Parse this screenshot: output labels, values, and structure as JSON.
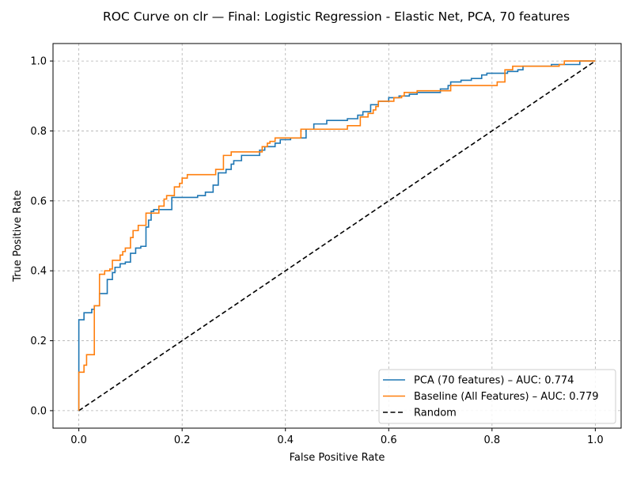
{
  "chart_data": {
    "type": "line",
    "title": "ROC Curve on clr — Final: Logistic Regression - Elastic Net, PCA, 70 features",
    "xlabel": "False Positive Rate",
    "ylabel": "True Positive Rate",
    "xlim": [
      -0.05,
      1.05
    ],
    "ylim": [
      -0.05,
      1.05
    ],
    "xticks": [
      "0.0",
      "0.2",
      "0.4",
      "0.6",
      "0.8",
      "1.0"
    ],
    "yticks": [
      "0.0",
      "0.2",
      "0.4",
      "0.6",
      "0.8",
      "1.0"
    ],
    "grid": true,
    "legend_position": "bottom-right",
    "series": [
      {
        "name": "PCA (70 features) – AUC: 0.774",
        "color": "#1f77b4",
        "style": "step",
        "points": [
          [
            0.0,
            0.0
          ],
          [
            0.0,
            0.26
          ],
          [
            0.01,
            0.26
          ],
          [
            0.01,
            0.28
          ],
          [
            0.025,
            0.28
          ],
          [
            0.025,
            0.29
          ],
          [
            0.03,
            0.29
          ],
          [
            0.03,
            0.3
          ],
          [
            0.04,
            0.3
          ],
          [
            0.04,
            0.335
          ],
          [
            0.055,
            0.335
          ],
          [
            0.055,
            0.375
          ],
          [
            0.065,
            0.375
          ],
          [
            0.065,
            0.395
          ],
          [
            0.07,
            0.395
          ],
          [
            0.07,
            0.41
          ],
          [
            0.08,
            0.41
          ],
          [
            0.08,
            0.42
          ],
          [
            0.09,
            0.42
          ],
          [
            0.09,
            0.425
          ],
          [
            0.1,
            0.425
          ],
          [
            0.1,
            0.45
          ],
          [
            0.11,
            0.45
          ],
          [
            0.11,
            0.465
          ],
          [
            0.12,
            0.465
          ],
          [
            0.12,
            0.47
          ],
          [
            0.13,
            0.47
          ],
          [
            0.13,
            0.525
          ],
          [
            0.135,
            0.525
          ],
          [
            0.135,
            0.545
          ],
          [
            0.14,
            0.545
          ],
          [
            0.14,
            0.57
          ],
          [
            0.145,
            0.57
          ],
          [
            0.145,
            0.575
          ],
          [
            0.18,
            0.575
          ],
          [
            0.18,
            0.61
          ],
          [
            0.23,
            0.61
          ],
          [
            0.23,
            0.615
          ],
          [
            0.245,
            0.615
          ],
          [
            0.245,
            0.625
          ],
          [
            0.26,
            0.625
          ],
          [
            0.26,
            0.645
          ],
          [
            0.27,
            0.645
          ],
          [
            0.27,
            0.68
          ],
          [
            0.285,
            0.68
          ],
          [
            0.285,
            0.69
          ],
          [
            0.295,
            0.69
          ],
          [
            0.295,
            0.705
          ],
          [
            0.3,
            0.705
          ],
          [
            0.3,
            0.715
          ],
          [
            0.315,
            0.715
          ],
          [
            0.315,
            0.73
          ],
          [
            0.35,
            0.73
          ],
          [
            0.35,
            0.745
          ],
          [
            0.36,
            0.745
          ],
          [
            0.36,
            0.755
          ],
          [
            0.38,
            0.755
          ],
          [
            0.38,
            0.765
          ],
          [
            0.39,
            0.765
          ],
          [
            0.39,
            0.775
          ],
          [
            0.41,
            0.775
          ],
          [
            0.41,
            0.78
          ],
          [
            0.44,
            0.78
          ],
          [
            0.44,
            0.805
          ],
          [
            0.455,
            0.805
          ],
          [
            0.455,
            0.82
          ],
          [
            0.48,
            0.82
          ],
          [
            0.48,
            0.83
          ],
          [
            0.52,
            0.83
          ],
          [
            0.52,
            0.835
          ],
          [
            0.54,
            0.835
          ],
          [
            0.54,
            0.845
          ],
          [
            0.55,
            0.845
          ],
          [
            0.55,
            0.855
          ],
          [
            0.565,
            0.855
          ],
          [
            0.565,
            0.875
          ],
          [
            0.58,
            0.875
          ],
          [
            0.58,
            0.885
          ],
          [
            0.6,
            0.885
          ],
          [
            0.6,
            0.895
          ],
          [
            0.62,
            0.895
          ],
          [
            0.62,
            0.9
          ],
          [
            0.64,
            0.9
          ],
          [
            0.64,
            0.905
          ],
          [
            0.655,
            0.905
          ],
          [
            0.655,
            0.91
          ],
          [
            0.7,
            0.91
          ],
          [
            0.7,
            0.92
          ],
          [
            0.715,
            0.92
          ],
          [
            0.715,
            0.93
          ],
          [
            0.72,
            0.93
          ],
          [
            0.72,
            0.94
          ],
          [
            0.74,
            0.94
          ],
          [
            0.74,
            0.945
          ],
          [
            0.76,
            0.945
          ],
          [
            0.76,
            0.95
          ],
          [
            0.78,
            0.95
          ],
          [
            0.78,
            0.96
          ],
          [
            0.79,
            0.96
          ],
          [
            0.79,
            0.965
          ],
          [
            0.83,
            0.965
          ],
          [
            0.83,
            0.97
          ],
          [
            0.85,
            0.97
          ],
          [
            0.85,
            0.975
          ],
          [
            0.86,
            0.975
          ],
          [
            0.86,
            0.985
          ],
          [
            0.915,
            0.985
          ],
          [
            0.915,
            0.99
          ],
          [
            0.97,
            0.99
          ],
          [
            0.97,
            1.0
          ],
          [
            1.0,
            1.0
          ]
        ]
      },
      {
        "name": "Baseline (All Features) – AUC: 0.779",
        "color": "#ff7f0e",
        "style": "step",
        "points": [
          [
            0.0,
            0.0
          ],
          [
            0.0,
            0.11
          ],
          [
            0.01,
            0.11
          ],
          [
            0.01,
            0.13
          ],
          [
            0.015,
            0.13
          ],
          [
            0.015,
            0.16
          ],
          [
            0.03,
            0.16
          ],
          [
            0.03,
            0.3
          ],
          [
            0.04,
            0.3
          ],
          [
            0.04,
            0.39
          ],
          [
            0.05,
            0.39
          ],
          [
            0.05,
            0.4
          ],
          [
            0.06,
            0.4
          ],
          [
            0.06,
            0.405
          ],
          [
            0.065,
            0.405
          ],
          [
            0.065,
            0.43
          ],
          [
            0.08,
            0.43
          ],
          [
            0.08,
            0.445
          ],
          [
            0.085,
            0.445
          ],
          [
            0.085,
            0.455
          ],
          [
            0.09,
            0.455
          ],
          [
            0.09,
            0.465
          ],
          [
            0.1,
            0.465
          ],
          [
            0.1,
            0.495
          ],
          [
            0.105,
            0.495
          ],
          [
            0.105,
            0.515
          ],
          [
            0.115,
            0.515
          ],
          [
            0.115,
            0.53
          ],
          [
            0.13,
            0.53
          ],
          [
            0.13,
            0.565
          ],
          [
            0.155,
            0.565
          ],
          [
            0.155,
            0.585
          ],
          [
            0.165,
            0.585
          ],
          [
            0.165,
            0.605
          ],
          [
            0.17,
            0.605
          ],
          [
            0.17,
            0.615
          ],
          [
            0.185,
            0.615
          ],
          [
            0.185,
            0.64
          ],
          [
            0.195,
            0.64
          ],
          [
            0.195,
            0.65
          ],
          [
            0.2,
            0.65
          ],
          [
            0.2,
            0.665
          ],
          [
            0.21,
            0.665
          ],
          [
            0.21,
            0.675
          ],
          [
            0.265,
            0.675
          ],
          [
            0.265,
            0.69
          ],
          [
            0.28,
            0.69
          ],
          [
            0.28,
            0.73
          ],
          [
            0.295,
            0.73
          ],
          [
            0.295,
            0.74
          ],
          [
            0.355,
            0.74
          ],
          [
            0.355,
            0.755
          ],
          [
            0.365,
            0.755
          ],
          [
            0.365,
            0.765
          ],
          [
            0.37,
            0.765
          ],
          [
            0.37,
            0.77
          ],
          [
            0.38,
            0.77
          ],
          [
            0.38,
            0.78
          ],
          [
            0.43,
            0.78
          ],
          [
            0.43,
            0.805
          ],
          [
            0.52,
            0.805
          ],
          [
            0.52,
            0.815
          ],
          [
            0.545,
            0.815
          ],
          [
            0.545,
            0.84
          ],
          [
            0.56,
            0.84
          ],
          [
            0.56,
            0.85
          ],
          [
            0.57,
            0.85
          ],
          [
            0.57,
            0.86
          ],
          [
            0.575,
            0.86
          ],
          [
            0.575,
            0.87
          ],
          [
            0.58,
            0.87
          ],
          [
            0.58,
            0.885
          ],
          [
            0.61,
            0.885
          ],
          [
            0.61,
            0.895
          ],
          [
            0.625,
            0.895
          ],
          [
            0.625,
            0.9
          ],
          [
            0.63,
            0.9
          ],
          [
            0.63,
            0.91
          ],
          [
            0.655,
            0.91
          ],
          [
            0.655,
            0.915
          ],
          [
            0.72,
            0.915
          ],
          [
            0.72,
            0.93
          ],
          [
            0.81,
            0.93
          ],
          [
            0.81,
            0.94
          ],
          [
            0.825,
            0.94
          ],
          [
            0.825,
            0.975
          ],
          [
            0.84,
            0.975
          ],
          [
            0.84,
            0.985
          ],
          [
            0.93,
            0.985
          ],
          [
            0.93,
            0.99
          ],
          [
            0.94,
            0.99
          ],
          [
            0.94,
            1.0
          ],
          [
            1.0,
            1.0
          ]
        ]
      },
      {
        "name": "Random",
        "color": "#000000",
        "style": "dashed",
        "points": [
          [
            0.0,
            0.0
          ],
          [
            1.0,
            1.0
          ]
        ]
      }
    ]
  }
}
